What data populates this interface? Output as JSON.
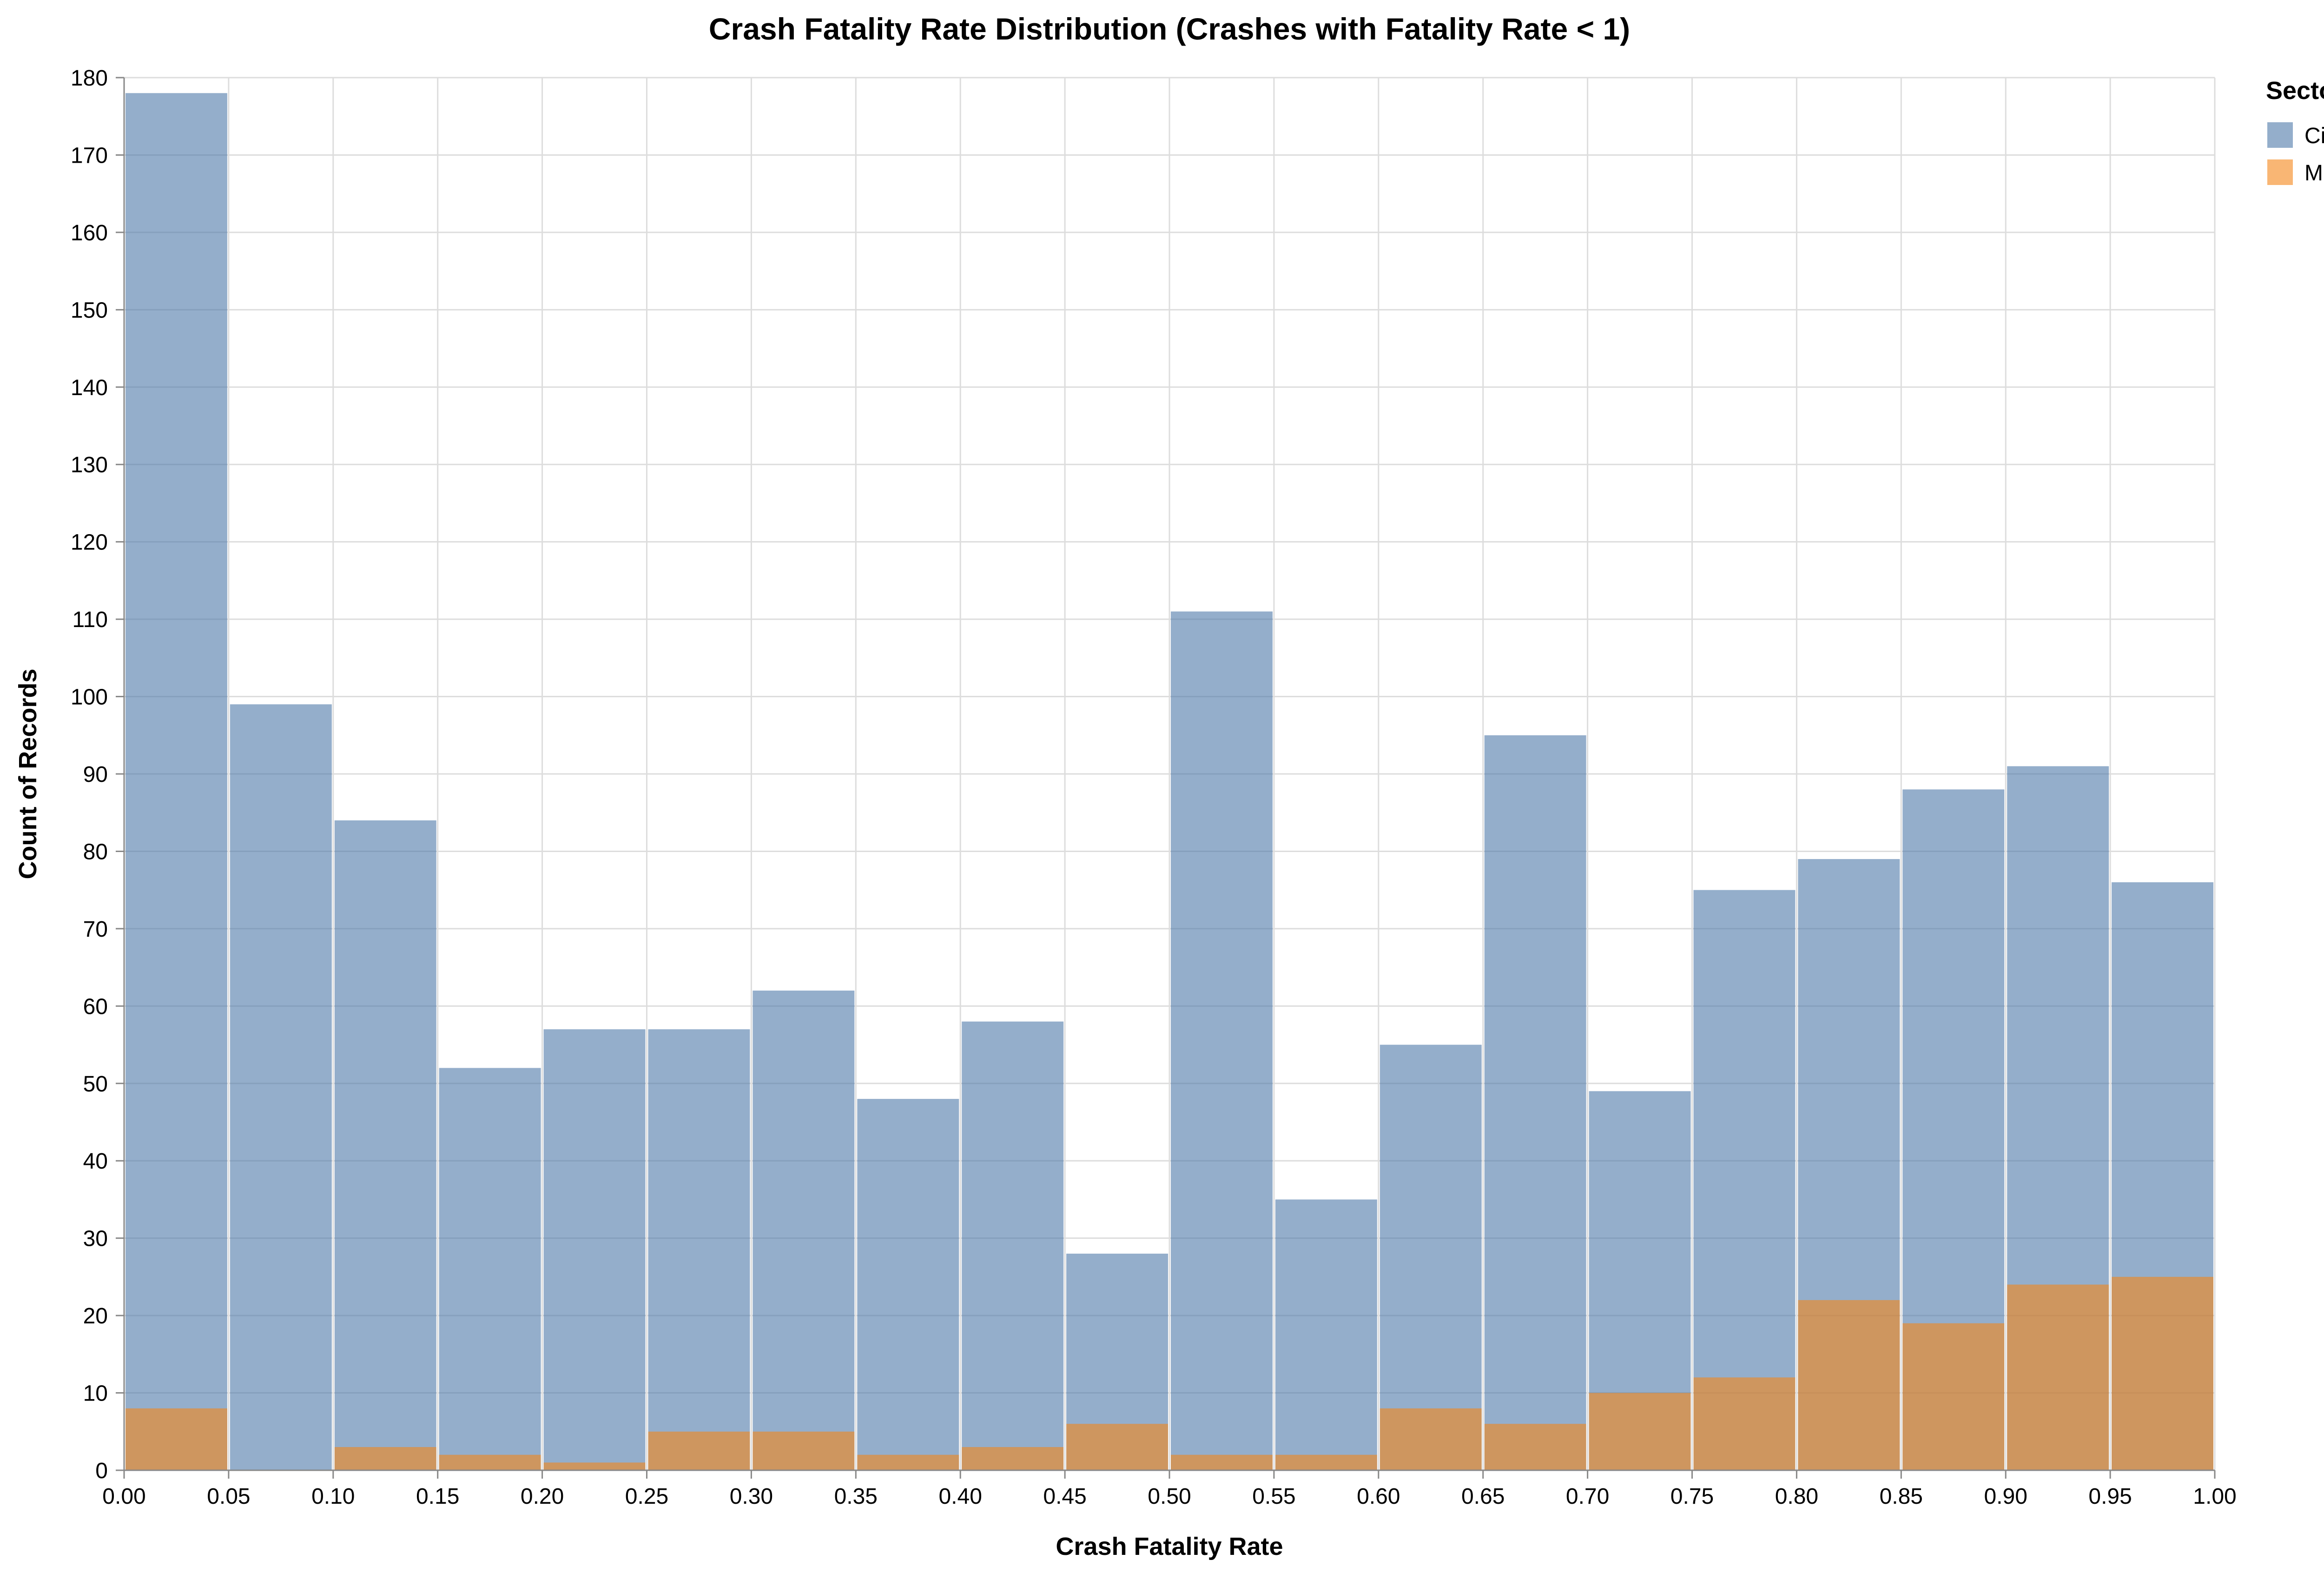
{
  "chart_data": {
    "type": "bar",
    "title": "Crash Fatality Rate Distribution (Crashes with Fatality Rate < 1)",
    "xlabel": "Crash Fatality Rate",
    "ylabel": "Count of Records",
    "xlim": [
      0,
      1
    ],
    "ylim": [
      0,
      180
    ],
    "grid": true,
    "x_ticks": [
      "0.00",
      "0.05",
      "0.10",
      "0.15",
      "0.20",
      "0.25",
      "0.30",
      "0.35",
      "0.40",
      "0.45",
      "0.50",
      "0.55",
      "0.60",
      "0.65",
      "0.70",
      "0.75",
      "0.80",
      "0.85",
      "0.90",
      "0.95",
      "1.00"
    ],
    "y_ticks": [
      "0",
      "10",
      "20",
      "30",
      "40",
      "50",
      "60",
      "70",
      "80",
      "90",
      "100",
      "110",
      "120",
      "130",
      "140",
      "150",
      "160",
      "170",
      "180"
    ],
    "bin_starts": [
      0.0,
      0.05,
      0.1,
      0.15,
      0.2,
      0.25,
      0.3,
      0.35,
      0.4,
      0.45,
      0.5,
      0.55,
      0.6,
      0.65,
      0.7,
      0.75,
      0.8,
      0.85,
      0.9,
      0.95
    ],
    "bin_width": 0.05,
    "series": [
      {
        "name": "Civilian",
        "color": "#4c78a8",
        "values": [
          178,
          99,
          84,
          52,
          57,
          57,
          62,
          48,
          58,
          28,
          111,
          35,
          55,
          95,
          49,
          75,
          79,
          88,
          91,
          76
        ]
      },
      {
        "name": "Military",
        "color": "#f58518",
        "values": [
          8,
          0,
          3,
          2,
          1,
          5,
          5,
          2,
          3,
          6,
          2,
          2,
          8,
          6,
          10,
          12,
          22,
          19,
          24,
          25
        ]
      }
    ],
    "legend": {
      "title": "Sector",
      "position": "top-right",
      "items": [
        {
          "label": "Civilian",
          "color": "#4c78a8"
        },
        {
          "label": "Military",
          "color": "#f58518"
        }
      ]
    }
  }
}
